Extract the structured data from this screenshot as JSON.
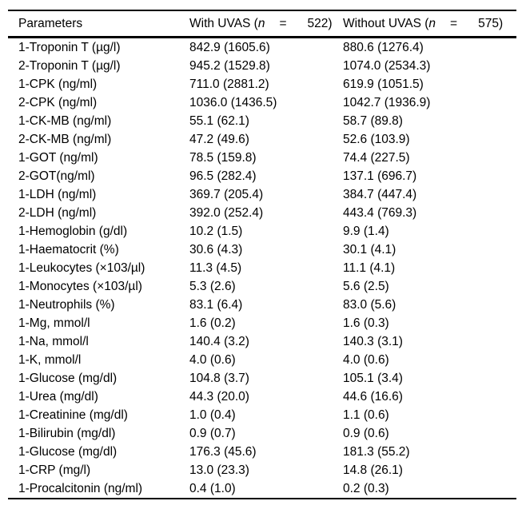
{
  "page": {
    "background_color": "#ffffff",
    "text_color": "#000000",
    "rule_color": "#000000"
  },
  "table": {
    "header": {
      "parameters_label": "Parameters",
      "group_columns": [
        {
          "prefix": "With UVAS (",
          "var": "n",
          "op": "=",
          "count": "522",
          "close": ")"
        },
        {
          "prefix": "Without UVAS (",
          "var": "n",
          "op": "=",
          "count": "575",
          "close": ")"
        }
      ]
    },
    "rows": [
      {
        "param": "1-Troponin T (µg/l)",
        "with_uvas": "842.9 (1605.6)",
        "without_uvas": "880.6 (1276.4)"
      },
      {
        "param": "2-Troponin T (µg/l)",
        "with_uvas": "945.2 (1529.8)",
        "without_uvas": "1074.0 (2534.3)"
      },
      {
        "param": "1-CPK (ng/ml)",
        "with_uvas": "711.0 (2881.2)",
        "without_uvas": "619.9 (1051.5)"
      },
      {
        "param": "2-CPK (ng/ml)",
        "with_uvas": "1036.0 (1436.5)",
        "without_uvas": "1042.7 (1936.9)"
      },
      {
        "param": "1-CK-MB (ng/ml)",
        "with_uvas": "55.1 (62.1)",
        "without_uvas": "58.7 (89.8)"
      },
      {
        "param": "2-CK-MB (ng/ml)",
        "with_uvas": "47.2 (49.6)",
        "without_uvas": "52.6 (103.9)"
      },
      {
        "param": "1-GOT (ng/ml)",
        "with_uvas": "78.5 (159.8)",
        "without_uvas": "74.4 (227.5)"
      },
      {
        "param": "2-GOT(ng/ml)",
        "with_uvas": "96.5 (282.4)",
        "without_uvas": "137.1 (696.7)"
      },
      {
        "param": "1-LDH (ng/ml)",
        "with_uvas": "369.7 (205.4)",
        "without_uvas": "384.7 (447.4)"
      },
      {
        "param": "2-LDH (ng/ml)",
        "with_uvas": "392.0 (252.4)",
        "without_uvas": "443.4 (769.3)"
      },
      {
        "param": "1-Hemoglobin (g/dl)",
        "with_uvas": "10.2 (1.5)",
        "without_uvas": "9.9 (1.4)"
      },
      {
        "param": "1-Haematocrit (%)",
        "with_uvas": "30.6 (4.3)",
        "without_uvas": "30.1 (4.1)"
      },
      {
        "param": "1-Leukocytes (×103/µl)",
        "with_uvas": "11.3 (4.5)",
        "without_uvas": "11.1 (4.1)"
      },
      {
        "param": "1-Monocytes (×103/µl)",
        "with_uvas": "5.3 (2.6)",
        "without_uvas": "5.6 (2.5)"
      },
      {
        "param": "1-Neutrophils (%)",
        "with_uvas": "83.1 (6.4)",
        "without_uvas": "83.0 (5.6)"
      },
      {
        "param": "1-Mg, mmol/l",
        "with_uvas": "1.6 (0.2)",
        "without_uvas": "1.6 (0.3)"
      },
      {
        "param": "1-Na, mmol/l",
        "with_uvas": "140.4 (3.2)",
        "without_uvas": "140.3 (3.1)"
      },
      {
        "param": "1-K, mmol/l",
        "with_uvas": "4.0 (0.6)",
        "without_uvas": "4.0 (0.6)"
      },
      {
        "param": "1-Glucose (mg/dl)",
        "with_uvas": "104.8 (3.7)",
        "without_uvas": "105.1 (3.4)"
      },
      {
        "param": "1-Urea (mg/dl)",
        "with_uvas": "44.3 (20.0)",
        "without_uvas": "44.6 (16.6)"
      },
      {
        "param": "1-Creatinine (mg/dl)",
        "with_uvas": "1.0 (0.4)",
        "without_uvas": "1.1 (0.6)"
      },
      {
        "param": "1-Bilirubin (mg/dl)",
        "with_uvas": "0.9 (0.7)",
        "without_uvas": "0.9 (0.6)"
      },
      {
        "param": "1-Glucose (mg/dl)",
        "with_uvas": "176.3 (45.6)",
        "without_uvas": "181.3 (55.2)"
      },
      {
        "param": "1-CRP (mg/l)",
        "with_uvas": "13.0 (23.3)",
        "without_uvas": "14.8 (26.1)"
      },
      {
        "param": "1-Procalcitonin (ng/ml)",
        "with_uvas": "0.4 (1.0)",
        "without_uvas": "0.2 (0.3)"
      }
    ]
  },
  "chart_data": {
    "type": "table",
    "title": "",
    "columns": [
      "Parameters",
      "With UVAS (n = 522)",
      "Without UVAS (n = 575)"
    ]
  }
}
